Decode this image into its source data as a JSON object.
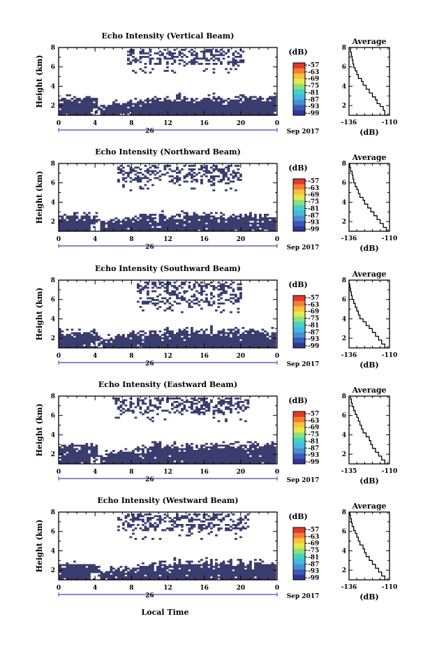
{
  "figure": {
    "xlabel": "Local Time",
    "date_day": "26",
    "date_label": "Sep 2017"
  },
  "chart_data": [
    {
      "type": "heatmap",
      "title": "Echo Intensity (Vertical Beam)",
      "ylabel": "Height (km)",
      "x_range": [
        0,
        24
      ],
      "y_range": [
        1,
        8
      ],
      "x_ticks": [
        "0",
        "4",
        "8",
        "12",
        "16",
        "20",
        "0"
      ],
      "y_ticks": [
        "2",
        "4",
        "6",
        "8"
      ],
      "colorbar_unit": "(dB)",
      "colorbar_ticks": [
        "-57",
        "-63",
        "-69",
        "-75",
        "-81",
        "-87",
        "-93",
        "-99"
      ],
      "lower_echo_top_km": 2.8,
      "upper_echo_start_h": 7.5,
      "upper_echo_end_h": 20.5,
      "upper_echo_band_km": [
        6.3,
        8.0
      ]
    },
    {
      "type": "heatmap",
      "title": "Echo Intensity (Northward Beam)",
      "ylabel": "Height (km)",
      "x_range": [
        0,
        24
      ],
      "y_range": [
        1,
        8
      ],
      "x_ticks": [
        "0",
        "4",
        "8",
        "12",
        "16",
        "20",
        "0"
      ],
      "y_ticks": [
        "2",
        "4",
        "6",
        "8"
      ],
      "colorbar_unit": "(dB)",
      "colorbar_ticks": [
        "-57",
        "-63",
        "-69",
        "-75",
        "-81",
        "-87",
        "-93",
        "-99"
      ],
      "lower_echo_top_km": 2.6,
      "upper_echo_start_h": 6.5,
      "upper_echo_end_h": 20.0,
      "upper_echo_band_km": [
        6.0,
        8.0
      ]
    },
    {
      "type": "heatmap",
      "title": "Echo Intensity (Southward Beam)",
      "ylabel": "Height (km)",
      "x_range": [
        0,
        24
      ],
      "y_range": [
        1,
        8
      ],
      "x_ticks": [
        "0",
        "4",
        "8",
        "12",
        "16",
        "20",
        "0"
      ],
      "y_ticks": [
        "2",
        "4",
        "6",
        "8"
      ],
      "colorbar_unit": "(dB)",
      "colorbar_ticks": [
        "-57",
        "-63",
        "-69",
        "-75",
        "-81",
        "-87",
        "-93",
        "-99"
      ],
      "lower_echo_top_km": 2.7,
      "upper_echo_start_h": 8.5,
      "upper_echo_end_h": 20.0,
      "upper_echo_band_km": [
        5.5,
        8.0
      ]
    },
    {
      "type": "heatmap",
      "title": "Echo Intensity (Eastward Beam)",
      "ylabel": "Height (km)",
      "x_range": [
        0,
        24
      ],
      "y_range": [
        1,
        8
      ],
      "x_ticks": [
        "0",
        "4",
        "8",
        "12",
        "16",
        "20",
        "0"
      ],
      "y_ticks": [
        "2",
        "4",
        "6",
        "8"
      ],
      "colorbar_unit": "(dB)",
      "colorbar_ticks": [
        "-57",
        "-63",
        "-69",
        "-75",
        "-81",
        "-87",
        "-93",
        "-99"
      ],
      "lower_echo_top_km": 2.9,
      "upper_echo_start_h": 6.0,
      "upper_echo_end_h": 21.0,
      "upper_echo_band_km": [
        6.2,
        8.0
      ]
    },
    {
      "type": "heatmap",
      "title": "Echo Intensity (Westward Beam)",
      "ylabel": "Height (km)",
      "x_range": [
        0,
        24
      ],
      "y_range": [
        1,
        8
      ],
      "x_ticks": [
        "0",
        "4",
        "8",
        "12",
        "16",
        "20",
        "0"
      ],
      "y_ticks": [
        "2",
        "4",
        "6",
        "8"
      ],
      "colorbar_unit": "(dB)",
      "colorbar_ticks": [
        "-57",
        "-63",
        "-69",
        "-75",
        "-81",
        "-87",
        "-93",
        "-99"
      ],
      "lower_echo_top_km": 2.7,
      "upper_echo_start_h": 6.5,
      "upper_echo_end_h": 21.0,
      "upper_echo_band_km": [
        6.0,
        8.0
      ]
    },
    {
      "type": "line",
      "title": "Average",
      "xlabel": "(dB)",
      "x_range": [
        -136,
        -110
      ],
      "y_range": [
        1,
        8
      ],
      "x_tick_labels": [
        "-136",
        "-110"
      ],
      "y_ticks": [
        "2",
        "4",
        "6",
        "8"
      ],
      "x": [
        -111,
        -113,
        -114,
        -116,
        -118,
        -119,
        -121,
        -123,
        -125,
        -127,
        -128,
        -130,
        -131,
        -132,
        -133,
        -133.5,
        -134,
        -134.5,
        -135
      ],
      "y": [
        1.0,
        1.5,
        1.9,
        2.2,
        2.6,
        2.9,
        3.3,
        3.7,
        4.1,
        4.5,
        4.8,
        5.2,
        5.6,
        5.9,
        6.3,
        6.7,
        7.1,
        7.5,
        8.0
      ]
    },
    {
      "type": "line",
      "title": "Average",
      "xlabel": "(dB)",
      "x_range": [
        -136,
        -110
      ],
      "y_range": [
        1,
        8
      ],
      "x_tick_labels": [
        "-136",
        "-110"
      ],
      "y_ticks": [
        "2",
        "4",
        "6",
        "8"
      ],
      "x": [
        -111,
        -112,
        -114,
        -116,
        -118,
        -120,
        -122,
        -124,
        -126,
        -127,
        -129,
        -130,
        -131,
        -132,
        -133,
        -133.5,
        -134,
        -135,
        -135.5
      ],
      "y": [
        1.0,
        1.4,
        1.8,
        2.2,
        2.6,
        3.0,
        3.4,
        3.8,
        4.2,
        4.5,
        4.9,
        5.3,
        5.6,
        6.0,
        6.4,
        6.8,
        7.2,
        7.6,
        8.0
      ]
    },
    {
      "type": "line",
      "title": "Average",
      "xlabel": "(dB)",
      "x_range": [
        -136,
        -110
      ],
      "y_range": [
        1,
        8
      ],
      "x_tick_labels": [
        "-136",
        "-110"
      ],
      "y_ticks": [
        "2",
        "4",
        "6",
        "8"
      ],
      "x": [
        -111,
        -113,
        -115,
        -117,
        -119,
        -121,
        -123,
        -125,
        -127,
        -129,
        -130,
        -131,
        -132,
        -133,
        -134,
        -134.5,
        -135,
        -135.5,
        -136
      ],
      "y": [
        1.0,
        1.4,
        1.8,
        2.2,
        2.6,
        3.0,
        3.3,
        3.7,
        4.0,
        4.4,
        4.8,
        5.2,
        5.6,
        6.0,
        6.4,
        6.8,
        7.2,
        7.6,
        8.0
      ]
    },
    {
      "type": "line",
      "title": "Average",
      "xlabel": "(dB)",
      "x_range": [
        -136,
        -110
      ],
      "y_range": [
        1,
        8
      ],
      "x_tick_labels": [
        "-135",
        "-110"
      ],
      "y_ticks": [
        "2",
        "4",
        "6",
        "8"
      ],
      "x": [
        -111,
        -113,
        -115,
        -117,
        -119,
        -121,
        -122,
        -123,
        -125,
        -127,
        -128,
        -129,
        -130,
        -131,
        -132,
        -133,
        -134,
        -134.5,
        -135
      ],
      "y": [
        1.0,
        1.4,
        1.8,
        2.2,
        2.6,
        3.0,
        3.4,
        3.8,
        4.2,
        4.6,
        5.0,
        5.4,
        5.8,
        6.1,
        6.5,
        6.9,
        7.3,
        7.7,
        8.0
      ]
    },
    {
      "type": "line",
      "title": "Average",
      "xlabel": "(dB)",
      "x_range": [
        -136,
        -110
      ],
      "y_range": [
        1,
        8
      ],
      "x_tick_labels": [
        "-136",
        "-110"
      ],
      "y_ticks": [
        "2",
        "4",
        "6",
        "8"
      ],
      "x": [
        -111,
        -113,
        -115,
        -117,
        -119,
        -121,
        -123,
        -125,
        -126,
        -127,
        -129,
        -130,
        -131,
        -132,
        -133,
        -134,
        -134.5,
        -135,
        -135.5
      ],
      "y": [
        1.0,
        1.4,
        1.8,
        2.2,
        2.6,
        3.0,
        3.4,
        3.8,
        4.2,
        4.6,
        5.0,
        5.4,
        5.8,
        6.1,
        6.5,
        6.9,
        7.3,
        7.7,
        8.0
      ]
    }
  ],
  "colors": {
    "echo": "#3a3d6e",
    "colorbar": [
      "#313695",
      "#3a5bb5",
      "#4a8fd0",
      "#47b8e0",
      "#3fd5c5",
      "#8ee07a",
      "#e2ea4c",
      "#fdc03a",
      "#f67b36",
      "#e03a28"
    ],
    "axis": "#000000",
    "date_line": "#3a46b0"
  }
}
